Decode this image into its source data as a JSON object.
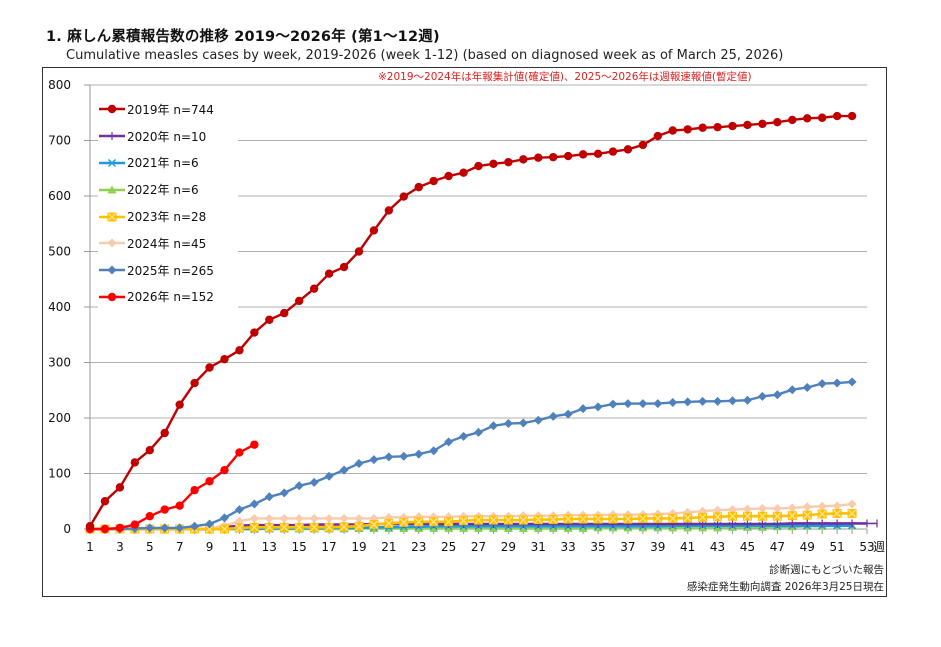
{
  "header": {
    "title": "1. 麻しん累積報告数の推移  2019～2026年 (第1～12週)",
    "subtitle": "Cumulative measles cases by week, 2019-2026 (week 1-12)  (based on diagnosed week as of March 25, 2026)"
  },
  "note": "※2019～2024年は年報集計値(確定値)、2025～2026年は週報速報値(暫定値)",
  "footer": {
    "line1": "診断週にもとづいた報告",
    "line2": "感染症発生動向調査 2026年3月25日現在"
  },
  "chart_data": {
    "type": "line",
    "title": "1. 麻しん累積報告数の推移  2019～2026年 (第1～12週)",
    "xlabel": "週",
    "ylabel": "",
    "xlim": [
      1,
      53
    ],
    "ylim": [
      0,
      800
    ],
    "yticks": [
      0,
      100,
      200,
      300,
      400,
      500,
      600,
      700,
      800
    ],
    "xticks": [
      1,
      3,
      5,
      7,
      9,
      11,
      13,
      15,
      17,
      19,
      21,
      23,
      25,
      27,
      29,
      31,
      33,
      35,
      37,
      39,
      41,
      43,
      45,
      47,
      49,
      51,
      53
    ],
    "x_unit_label": "週",
    "grid": true,
    "legend_position": "top-left",
    "series": [
      {
        "name": "2019年 n=744",
        "color": "#c00000",
        "marker": "circle",
        "values": [
          5,
          50,
          75,
          120,
          142,
          173,
          224,
          263,
          291,
          306,
          322,
          354,
          377,
          389,
          411,
          433,
          460,
          472,
          500,
          538,
          574,
          599,
          616,
          627,
          636,
          642,
          654,
          658,
          661,
          666,
          669,
          670,
          672,
          675,
          676,
          680,
          684,
          692,
          708,
          718,
          720,
          723,
          724,
          726,
          728,
          730,
          733,
          737,
          740,
          741,
          744,
          744
        ]
      },
      {
        "name": "2020年 n=10",
        "color": "#7030a0",
        "marker": "plus",
        "values": [
          0,
          0,
          0,
          0,
          0,
          0,
          0,
          0,
          0,
          3,
          6,
          7,
          7,
          7,
          7,
          8,
          8,
          8,
          8,
          9,
          9,
          9,
          9,
          9,
          9,
          9,
          9,
          9,
          9,
          9,
          9,
          9,
          9,
          9,
          9,
          9,
          9,
          9,
          9,
          9,
          9,
          9,
          9,
          9,
          9,
          9,
          9,
          10,
          10,
          10,
          10,
          10,
          10
        ]
      },
      {
        "name": "2021年 n=6",
        "color": "#1e9be0",
        "marker": "x",
        "values": [
          0,
          0,
          0,
          0,
          0,
          0,
          0,
          0,
          0,
          0,
          0,
          0,
          1,
          1,
          1,
          1,
          2,
          2,
          2,
          3,
          3,
          4,
          4,
          5,
          5,
          5,
          5,
          5,
          5,
          5,
          5,
          5,
          5,
          5,
          5,
          5,
          5,
          5,
          5,
          6,
          6,
          6,
          6,
          6,
          6,
          6,
          6,
          6,
          6,
          6,
          6,
          6
        ]
      },
      {
        "name": "2022年 n=6",
        "color": "#92d050",
        "marker": "triangle",
        "values": [
          0,
          0,
          0,
          0,
          0,
          0,
          0,
          0,
          0,
          0,
          0,
          0,
          0,
          0,
          0,
          0,
          0,
          0,
          1,
          1,
          1,
          1,
          1,
          1,
          1,
          1,
          1,
          1,
          1,
          1,
          1,
          1,
          1,
          1,
          2,
          2,
          2,
          2,
          2,
          2,
          2,
          2,
          2,
          3,
          3,
          3,
          4,
          4,
          5,
          5,
          6,
          6
        ]
      },
      {
        "name": "2023年 n=28",
        "color": "#ffc000",
        "marker": "square-x",
        "values": [
          0,
          0,
          0,
          0,
          0,
          0,
          0,
          0,
          0,
          0,
          2,
          3,
          3,
          3,
          3,
          3,
          3,
          4,
          5,
          8,
          10,
          12,
          13,
          13,
          13,
          15,
          16,
          16,
          16,
          16,
          17,
          17,
          18,
          18,
          18,
          18,
          18,
          19,
          19,
          19,
          20,
          21,
          22,
          23,
          23,
          23,
          23,
          24,
          25,
          27,
          28,
          28
        ]
      },
      {
        "name": "2024年 n=45",
        "color": "#f8cbad",
        "marker": "diamond",
        "values": [
          0,
          0,
          0,
          0,
          0,
          0,
          0,
          0,
          1,
          6,
          14,
          19,
          19,
          19,
          19,
          19,
          19,
          19,
          19,
          19,
          21,
          21,
          22,
          22,
          22,
          23,
          23,
          23,
          23,
          24,
          24,
          24,
          25,
          25,
          25,
          26,
          26,
          26,
          27,
          28,
          30,
          32,
          34,
          35,
          36,
          37,
          37,
          38,
          40,
          41,
          42,
          45
        ]
      },
      {
        "name": "2025年 n=265",
        "color": "#4f81bd",
        "marker": "diamond",
        "values": [
          0,
          0,
          0,
          1,
          2,
          2,
          2,
          5,
          9,
          20,
          35,
          45,
          58,
          65,
          78,
          84,
          95,
          106,
          118,
          125,
          130,
          131,
          135,
          141,
          157,
          167,
          174,
          186,
          190,
          191,
          196,
          203,
          207,
          217,
          220,
          225,
          226,
          226,
          226,
          228,
          229,
          230,
          230,
          231,
          232,
          239,
          242,
          251,
          255,
          262,
          263,
          265
        ]
      },
      {
        "name": "2026年 n=152",
        "color": "#ff0000",
        "marker": "circle",
        "values": [
          0,
          0,
          2,
          8,
          23,
          35,
          42,
          70,
          86,
          106,
          138,
          152
        ]
      }
    ]
  }
}
